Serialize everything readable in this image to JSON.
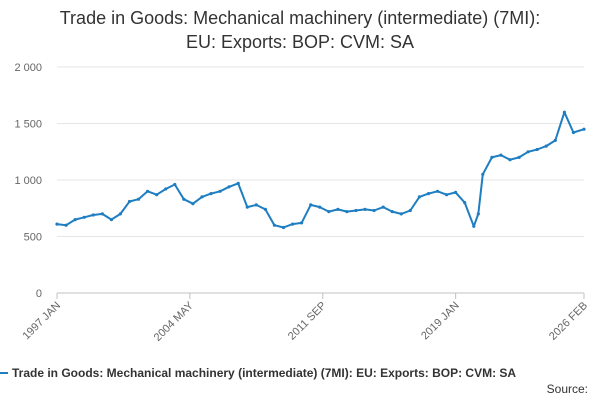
{
  "chart_data": {
    "type": "line",
    "title_lines": [
      "Trade in Goods: Mechanical machinery (intermediate) (7MI):",
      "EU: Exports: BOP: CVM: SA"
    ],
    "x_tick_labels": [
      "1997 JAN",
      "2004 MAY",
      "2011 SEP",
      "2019 JAN",
      "2026 FEB"
    ],
    "y_tick_labels": [
      "0",
      "500",
      "1 000",
      "1 500",
      "2 000"
    ],
    "y_ticks": [
      0,
      500,
      1000,
      1500,
      2000
    ],
    "ylim": [
      0,
      2000
    ],
    "x_range": [
      "1997-01",
      "2026-02"
    ],
    "grid": "horizontal",
    "legend_position": "bottom",
    "series": [
      {
        "name": "Trade in Goods: Mechanical machinery (intermediate) (7MI): EU: Exports: BOP: CVM: SA",
        "color": "#1f7ec1",
        "x": [
          "1997-01",
          "1997-07",
          "1998-01",
          "1998-07",
          "1999-01",
          "1999-07",
          "2000-01",
          "2000-07",
          "2001-01",
          "2001-07",
          "2002-01",
          "2002-07",
          "2003-01",
          "2003-07",
          "2004-01",
          "2004-07",
          "2005-01",
          "2005-07",
          "2006-01",
          "2006-07",
          "2007-01",
          "2007-07",
          "2008-01",
          "2008-07",
          "2009-01",
          "2009-07",
          "2010-01",
          "2010-07",
          "2011-01",
          "2011-07",
          "2012-01",
          "2012-07",
          "2013-01",
          "2013-07",
          "2014-01",
          "2014-07",
          "2015-01",
          "2015-07",
          "2016-01",
          "2016-07",
          "2017-01",
          "2017-07",
          "2018-01",
          "2018-07",
          "2019-01",
          "2019-07",
          "2020-01",
          "2020-04",
          "2020-07",
          "2021-01",
          "2021-07",
          "2022-01",
          "2022-07",
          "2023-01",
          "2023-07",
          "2024-01",
          "2024-07",
          "2025-01",
          "2025-07",
          "2026-02"
        ],
        "values": [
          610,
          600,
          650,
          670,
          690,
          700,
          650,
          700,
          810,
          830,
          900,
          870,
          920,
          960,
          830,
          790,
          850,
          880,
          900,
          940,
          970,
          760,
          780,
          740,
          600,
          580,
          610,
          620,
          780,
          760,
          720,
          740,
          720,
          730,
          740,
          730,
          760,
          720,
          700,
          730,
          850,
          880,
          900,
          870,
          890,
          800,
          590,
          700,
          1050,
          1200,
          1220,
          1180,
          1200,
          1250,
          1270,
          1300,
          1350,
          1600,
          1420,
          1450
        ]
      }
    ],
    "legend_text": "Trade in Goods: Mechanical machinery (intermediate) (7MI): EU: Exports: BOP: CVM: SA",
    "source_label": "Source:"
  }
}
